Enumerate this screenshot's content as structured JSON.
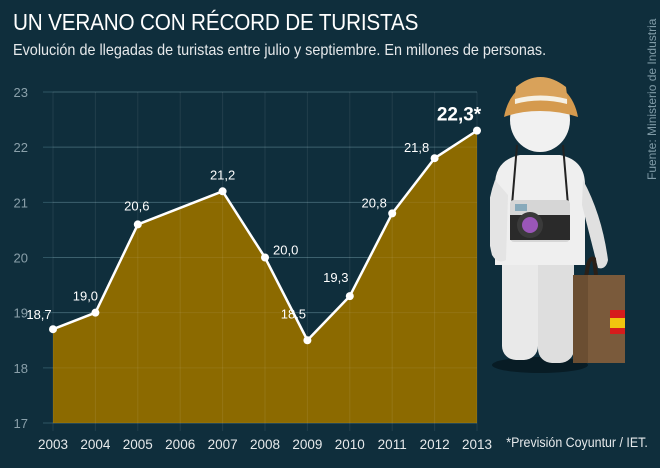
{
  "header": {
    "title": "UN VERANO CON RÉCORD DE TURISTAS",
    "subtitle": "Evolución de llegadas de turistas entre julio y septiembre. En millones de personas."
  },
  "source": "Fuente: Ministerio de Industria",
  "footnote": "*Previsión Coyuntur / IET.",
  "illustration": {
    "name": "tourist-figure-icon",
    "description": "Figura de turista con sombrero, cámara y maleta con bandera de España"
  },
  "colors": {
    "background": "#0f2e3c",
    "area_fill": "#8c6a00",
    "line": "#ffffff",
    "grid": "#2f5563"
  },
  "chart_data": {
    "type": "area",
    "title": "UN VERANO CON RÉCORD DE TURISTAS",
    "subtitle": "Evolución de llegadas de turistas entre julio y septiembre. En millones de personas.",
    "xlabel": "",
    "ylabel": "Millones de personas",
    "x": [
      2003,
      2004,
      2005,
      2006,
      2007,
      2008,
      2009,
      2010,
      2011,
      2012,
      2013
    ],
    "labeled_points": [
      {
        "x": 2003,
        "y": 18.7,
        "label": "18,7"
      },
      {
        "x": 2004,
        "y": 19.0,
        "label": "19,0"
      },
      {
        "x": 2005,
        "y": 20.6,
        "label": "20,6"
      },
      {
        "x": 2007,
        "y": 21.2,
        "label": "21,2"
      },
      {
        "x": 2008,
        "y": 20.0,
        "label": "20,0"
      },
      {
        "x": 2009,
        "y": 18.5,
        "label": "18,5"
      },
      {
        "x": 2010,
        "y": 19.3,
        "label": "19,3"
      },
      {
        "x": 2011,
        "y": 20.8,
        "label": "20,8"
      },
      {
        "x": 2012,
        "y": 21.8,
        "label": "21,8"
      },
      {
        "x": 2013,
        "y": 22.3,
        "label": "22,3*",
        "forecast": true
      }
    ],
    "x_ticks": [
      "2003",
      "2004",
      "2005",
      "2006",
      "2007",
      "2008",
      "2009",
      "2010",
      "2011",
      "2012",
      "2013"
    ],
    "y_ticks": [
      "17",
      "18",
      "19",
      "20",
      "21",
      "22",
      "23"
    ],
    "xlim": [
      2003,
      2013
    ],
    "ylim": [
      17,
      23
    ],
    "grid": true,
    "annotation": "*Previsión Coyuntur / IET."
  }
}
